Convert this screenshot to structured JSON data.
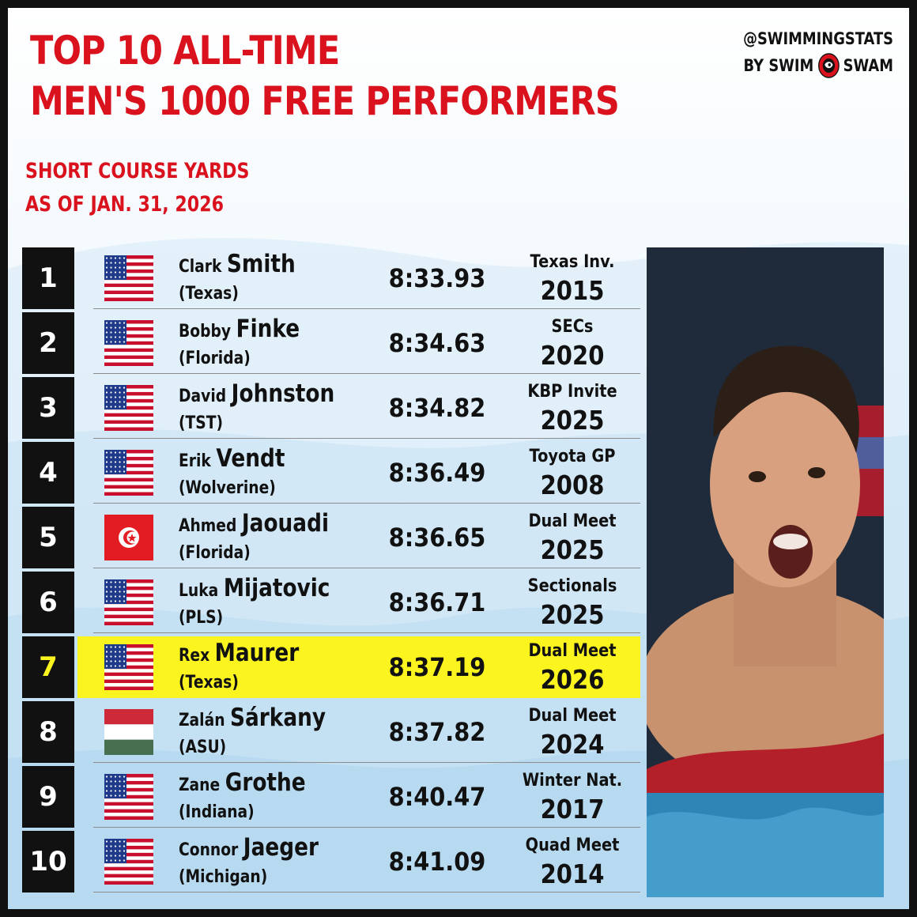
{
  "header": {
    "title_line1": "TOP 10 ALL-TIME",
    "title_line2": "MEN'S 1000 FREE PERFORMERS",
    "subtitle_line1": "SHORT COURSE YARDS",
    "subtitle_line2": "AS OF JAN. 31, 2026"
  },
  "brand": {
    "handle": "@SWIMMINGSTATS",
    "by": "BY SWIM",
    "swam": "SWAM",
    "logo_icon": "swimswam-logo-icon"
  },
  "colors": {
    "title_red": "#d9121d",
    "highlight_yellow": "#fbf41f",
    "rank_black": "#111111"
  },
  "rows": [
    {
      "rank": "1",
      "first": "Clark",
      "last": "Smith",
      "team": "(Texas)",
      "time": "8:33.93",
      "meet": "Texas Inv.",
      "year": "2015",
      "flag": "usa-flag-icon"
    },
    {
      "rank": "2",
      "first": "Bobby",
      "last": "Finke",
      "team": "(Florida)",
      "time": "8:34.63",
      "meet": "SECs",
      "year": "2020",
      "flag": "usa-flag-icon"
    },
    {
      "rank": "3",
      "first": "David",
      "last": "Johnston",
      "team": "(TST)",
      "time": "8:34.82",
      "meet": "KBP Invite",
      "year": "2025",
      "flag": "usa-flag-icon"
    },
    {
      "rank": "4",
      "first": "Erik",
      "last": "Vendt",
      "team": "(Wolverine)",
      "time": "8:36.49",
      "meet": "Toyota GP",
      "year": "2008",
      "flag": "usa-flag-icon"
    },
    {
      "rank": "5",
      "first": "Ahmed",
      "last": "Jaouadi",
      "team": "(Florida)",
      "time": "8:36.65",
      "meet": "Dual Meet",
      "year": "2025",
      "flag": "tunisia-flag-icon"
    },
    {
      "rank": "6",
      "first": "Luka",
      "last": "Mijatovic",
      "team": "(PLS)",
      "time": "8:36.71",
      "meet": "Sectionals",
      "year": "2025",
      "flag": "usa-flag-icon"
    },
    {
      "rank": "7",
      "first": "Rex",
      "last": "Maurer",
      "team": "(Texas)",
      "time": "8:37.19",
      "meet": "Dual Meet",
      "year": "2026",
      "flag": "usa-flag-icon",
      "highlight": true
    },
    {
      "rank": "8",
      "first": "Zalán",
      "last": "Sárkany",
      "team": "(ASU)",
      "time": "8:37.82",
      "meet": "Dual Meet",
      "year": "2024",
      "flag": "hungary-flag-icon"
    },
    {
      "rank": "9",
      "first": "Zane",
      "last": "Grothe",
      "team": "(Indiana)",
      "time": "8:40.47",
      "meet": "Winter Nat.",
      "year": "2017",
      "flag": "usa-flag-icon"
    },
    {
      "rank": "10",
      "first": "Connor",
      "last": "Jaeger",
      "team": "(Michigan)",
      "time": "8:41.09",
      "meet": "Quad Meet",
      "year": "2014",
      "flag": "usa-flag-icon"
    }
  ]
}
